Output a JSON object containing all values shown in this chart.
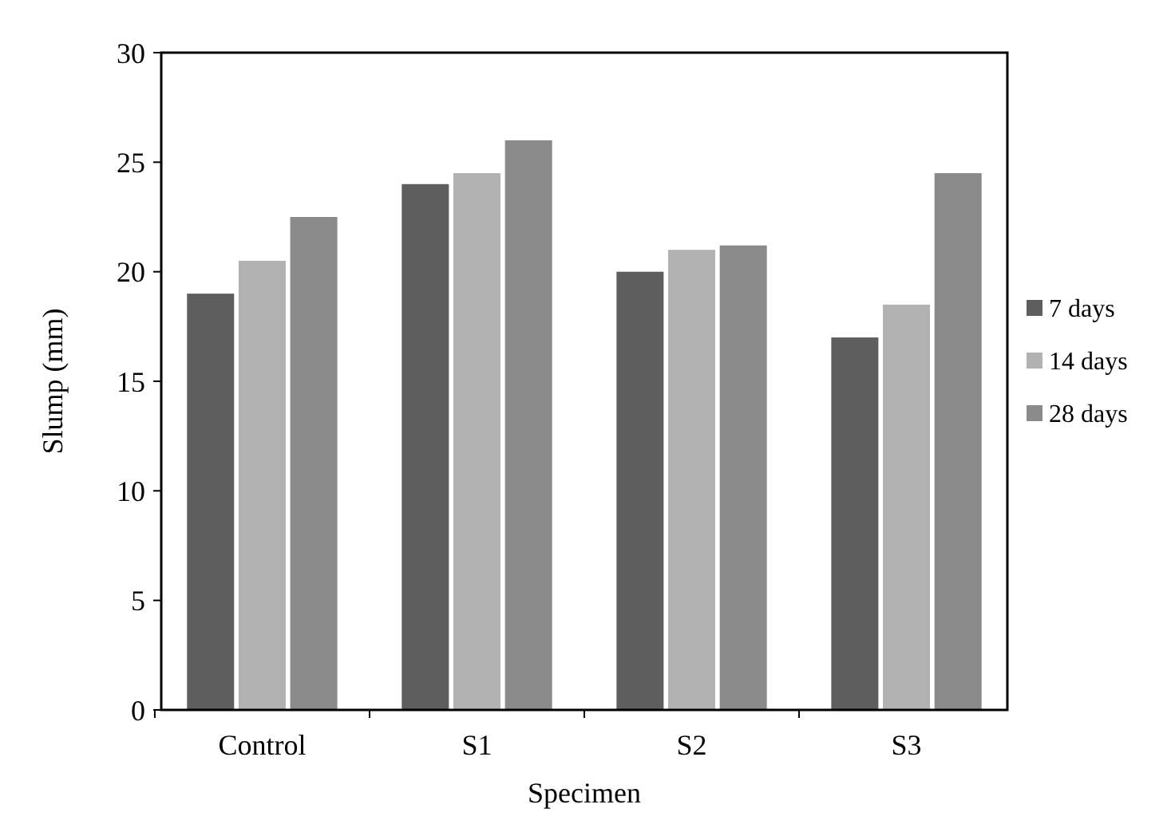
{
  "chart_data": {
    "type": "bar",
    "xlabel": "Specimen",
    "ylabel": "Slump (mm)",
    "categories": [
      "Control",
      "S1",
      "S2",
      "S3"
    ],
    "series": [
      {
        "name": "7 days",
        "color": "#5e5e5e",
        "values": [
          19,
          24,
          20,
          17
        ]
      },
      {
        "name": "14 days",
        "color": "#b2b2b2",
        "values": [
          20.5,
          24.5,
          21,
          18.5
        ]
      },
      {
        "name": "28 days",
        "color": "#8a8a8a",
        "values": [
          22.5,
          26,
          21.2,
          24.5
        ]
      }
    ],
    "ylim": [
      0,
      30
    ],
    "yticks": [
      0,
      5,
      10,
      15,
      20,
      25,
      30
    ],
    "grid": false,
    "legend": "right"
  }
}
